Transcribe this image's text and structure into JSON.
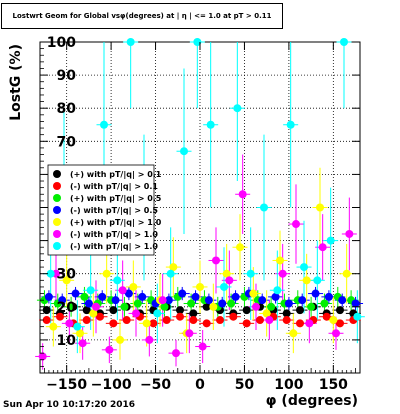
{
  "title": "Lostwrt Geom for Global vsφ(degrees) at | η | <= 1.0 at pT > 0.11",
  "datestamp": "Sun Apr 10 10:17:20 2016",
  "chart_data": {
    "type": "scatter",
    "xlabel": "φ (degrees)",
    "ylabel": "LostG (%)",
    "xlim": [
      -180,
      180
    ],
    "ylim": [
      0,
      100
    ],
    "xticks": [
      -150,
      -100,
      -50,
      0,
      50,
      100,
      150
    ],
    "xtick_labels": [
      "−150",
      "−100",
      "−50",
      "0",
      "50",
      "100",
      "150"
    ],
    "yticks": [
      10,
      20,
      30,
      40,
      50,
      60,
      70,
      80,
      90,
      100
    ],
    "ytick_labels": [
      "10",
      "20",
      "30",
      "40",
      "50",
      "60",
      "70",
      "80",
      "90",
      "100"
    ],
    "grid": true,
    "legend_position": "left-middle",
    "series": [
      {
        "name": "(+) with pT/|q| > 0.1",
        "color": "#000000",
        "x": [
          -172.5,
          -157.5,
          -142.5,
          -127.5,
          -112.5,
          -97.5,
          -82.5,
          -67.5,
          -52.5,
          -37.5,
          -22.5,
          -7.5,
          7.5,
          22.5,
          37.5,
          52.5,
          67.5,
          82.5,
          97.5,
          112.5,
          127.5,
          142.5,
          157.5,
          172.5
        ],
        "y": [
          19,
          18,
          20,
          19,
          18,
          19,
          20,
          18,
          19,
          20,
          19,
          18,
          20,
          19,
          18,
          19,
          20,
          19,
          18,
          19,
          20,
          18,
          19,
          18
        ],
        "err": [
          1,
          1,
          1,
          1,
          1,
          1,
          1,
          1,
          1,
          1,
          1,
          1,
          1,
          1,
          1,
          1,
          1,
          1,
          1,
          1,
          1,
          1,
          1,
          1
        ]
      },
      {
        "name": "(-) with pT/|q| > 0.1",
        "color": "#ff0000",
        "x": [
          -172.5,
          -157.5,
          -142.5,
          -127.5,
          -112.5,
          -97.5,
          -82.5,
          -67.5,
          -52.5,
          -37.5,
          -22.5,
          -7.5,
          7.5,
          22.5,
          37.5,
          52.5,
          67.5,
          82.5,
          97.5,
          112.5,
          127.5,
          142.5,
          157.5,
          172.5
        ],
        "y": [
          16,
          17,
          15,
          16,
          17,
          15,
          16,
          17,
          15,
          16,
          17,
          16,
          15,
          16,
          17,
          15,
          16,
          17,
          16,
          15,
          16,
          17,
          15,
          16
        ],
        "err": [
          1,
          1,
          1,
          1,
          1,
          1,
          1,
          1,
          1,
          1,
          1,
          1,
          1,
          1,
          1,
          1,
          1,
          1,
          1,
          1,
          1,
          1,
          1,
          1
        ]
      },
      {
        "name": "(+) with pT/|q| > 0.5",
        "color": "#00ee00",
        "x": [
          -175,
          -160,
          -145,
          -130,
          -115,
          -100,
          -85,
          -70,
          -55,
          -40,
          -25,
          -10,
          5,
          20,
          35,
          50,
          65,
          80,
          95,
          110,
          125,
          140,
          155,
          170
        ],
        "y": [
          22,
          21,
          20,
          23,
          21,
          22,
          20,
          21,
          22,
          20,
          23,
          21,
          22,
          20,
          21,
          23,
          22,
          20,
          21,
          22,
          20,
          21,
          23,
          22
        ],
        "err": [
          3,
          3,
          3,
          3,
          3,
          3,
          3,
          3,
          3,
          3,
          3,
          3,
          3,
          3,
          3,
          3,
          3,
          3,
          3,
          3,
          3,
          3,
          3,
          3
        ]
      },
      {
        "name": "(-) with pT/|q| > 0.5",
        "color": "#0000ff",
        "x": [
          -170,
          -155,
          -140,
          -125,
          -110,
          -95,
          -80,
          -65,
          -50,
          -35,
          -20,
          -5,
          10,
          25,
          40,
          55,
          70,
          85,
          100,
          115,
          130,
          145,
          160,
          175
        ],
        "y": [
          23,
          22,
          24,
          21,
          23,
          22,
          24,
          23,
          21,
          22,
          24,
          23,
          22,
          21,
          23,
          24,
          22,
          23,
          21,
          22,
          24,
          23,
          22,
          21
        ],
        "err": [
          2,
          2,
          2,
          2,
          2,
          2,
          2,
          2,
          2,
          2,
          2,
          2,
          2,
          2,
          2,
          2,
          2,
          2,
          2,
          2,
          2,
          2,
          2,
          2
        ]
      },
      {
        "name": "(+) with pT/|q| > 1.0",
        "color": "#ffff00",
        "x": [
          -165,
          -150,
          -135,
          -120,
          -105,
          -90,
          -75,
          -60,
          -45,
          -30,
          -15,
          0,
          15,
          30,
          45,
          60,
          75,
          90,
          105,
          120,
          135,
          150,
          165
        ],
        "y": [
          14,
          28,
          12,
          18,
          30,
          10,
          26,
          15,
          22,
          32,
          12,
          26,
          20,
          30,
          38,
          24,
          18,
          34,
          12,
          28,
          50,
          16,
          30
        ],
        "err": [
          6,
          8,
          6,
          7,
          9,
          6,
          8,
          7,
          8,
          9,
          6,
          8,
          7,
          9,
          10,
          8,
          7,
          9,
          6,
          8,
          12,
          7,
          9
        ]
      },
      {
        "name": "(-) with pT/|q| > 1.0",
        "color": "#ff00ff",
        "x": [
          -177,
          -162,
          -147,
          -132,
          -117,
          -102,
          -87,
          -72,
          -57,
          -42,
          -27,
          -12,
          3,
          18,
          33,
          48,
          63,
          78,
          93,
          108,
          123,
          138,
          153,
          168
        ],
        "y": [
          5,
          30,
          15,
          9,
          20,
          7,
          25,
          18,
          10,
          22,
          6,
          12,
          8,
          34,
          28,
          54,
          20,
          16,
          30,
          45,
          15,
          38,
          12,
          42
        ],
        "err": [
          4,
          10,
          6,
          5,
          8,
          4,
          9,
          7,
          5,
          8,
          4,
          6,
          5,
          10,
          9,
          12,
          7,
          6,
          9,
          12,
          6,
          10,
          5,
          11
        ]
      },
      {
        "name": "(-) with pT/|q| > 1.0",
        "color": "#00ffff",
        "x": [
          -168,
          -153,
          -138,
          -123,
          -108,
          -93,
          -78,
          -63,
          -48,
          -33,
          -18,
          -3,
          12,
          27,
          42,
          57,
          72,
          87,
          102,
          117,
          132,
          147,
          162,
          177
        ],
        "y": [
          30,
          60,
          14,
          25,
          75,
          28,
          100,
          50,
          18,
          30,
          67,
          100,
          75,
          26,
          80,
          30,
          50,
          25,
          75,
          32,
          28,
          40,
          100,
          17
        ],
        "err": [
          15,
          20,
          8,
          12,
          25,
          12,
          20,
          22,
          9,
          14,
          25,
          20,
          25,
          12,
          22,
          14,
          22,
          12,
          25,
          14,
          12,
          16,
          20,
          8
        ]
      }
    ]
  }
}
